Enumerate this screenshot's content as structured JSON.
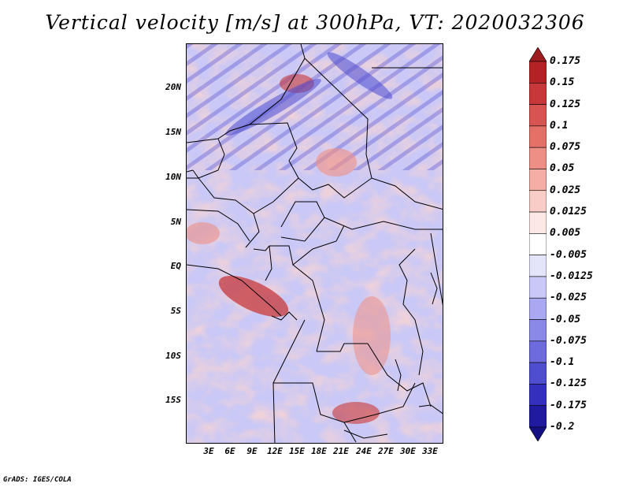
{
  "title": "Vertical velocity [m/s] at 300hPa, VT: 2020032306",
  "footer": "GrADS: IGES/COLA",
  "map": {
    "lat_labels": [
      "20N",
      "15N",
      "10N",
      "5N",
      "EQ",
      "5S",
      "10S",
      "15S"
    ],
    "lon_labels": [
      "3E",
      "6E",
      "9E",
      "12E",
      "15E",
      "18E",
      "21E",
      "24E",
      "27E",
      "30E",
      "33E"
    ],
    "colors": {
      "ocean_fill": "#e6e8fc",
      "positive_fill": "#f3a8a2",
      "negative_fill": "#a9a8f0",
      "border": "#000000"
    }
  },
  "colorbar": {
    "labels": [
      "0.175",
      "0.15",
      "0.125",
      "0.1",
      "0.075",
      "0.05",
      "0.025",
      "0.0125",
      "0.005",
      "-0.005",
      "-0.0125",
      "-0.025",
      "-0.05",
      "-0.075",
      "-0.1",
      "-0.125",
      "-0.175",
      "-0.2"
    ],
    "colors": [
      "#9b1b1e",
      "#b42226",
      "#c8383a",
      "#d85452",
      "#e57068",
      "#ee8f85",
      "#f4aea6",
      "#f8cdc7",
      "#fce9e6",
      "#ffffff",
      "#e4e4fb",
      "#c9c8f6",
      "#a9a8f0",
      "#8b89e8",
      "#6d6bdd",
      "#4f4dd0",
      "#3430bd",
      "#1f1aa0",
      "#140f82"
    ]
  }
}
